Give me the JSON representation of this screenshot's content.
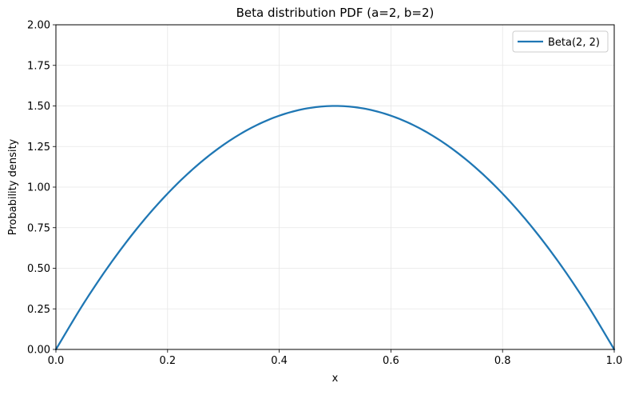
{
  "chart_data": {
    "type": "line",
    "title": "Beta distribution PDF (a=2, b=2)",
    "xlabel": "x",
    "ylabel": "Probability density",
    "xlim": [
      0,
      1
    ],
    "ylim": [
      0,
      2
    ],
    "x_ticks": [
      0.0,
      0.2,
      0.4,
      0.6,
      0.8,
      1.0
    ],
    "x_tick_labels": [
      "0.0",
      "0.2",
      "0.4",
      "0.6",
      "0.8",
      "1.0"
    ],
    "y_ticks": [
      0.0,
      0.25,
      0.5,
      0.75,
      1.0,
      1.25,
      1.5,
      1.75,
      2.0
    ],
    "y_tick_labels": [
      "0.00",
      "0.25",
      "0.50",
      "0.75",
      "1.00",
      "1.25",
      "1.50",
      "1.75",
      "2.00"
    ],
    "grid": true,
    "legend_position": "top-right",
    "series": [
      {
        "name": "Beta(2, 2)",
        "color": "#1f77b4",
        "x": [
          0.0,
          0.05,
          0.1,
          0.15,
          0.2,
          0.25,
          0.3,
          0.35,
          0.4,
          0.45,
          0.5,
          0.55,
          0.6,
          0.65,
          0.7,
          0.75,
          0.8,
          0.85,
          0.9,
          0.95,
          1.0
        ],
        "y": [
          0.0,
          0.285,
          0.54,
          0.765,
          0.96,
          1.125,
          1.26,
          1.365,
          1.44,
          1.485,
          1.5,
          1.485,
          1.44,
          1.365,
          1.26,
          1.125,
          0.96,
          0.765,
          0.54,
          0.285,
          0.0
        ]
      }
    ]
  }
}
